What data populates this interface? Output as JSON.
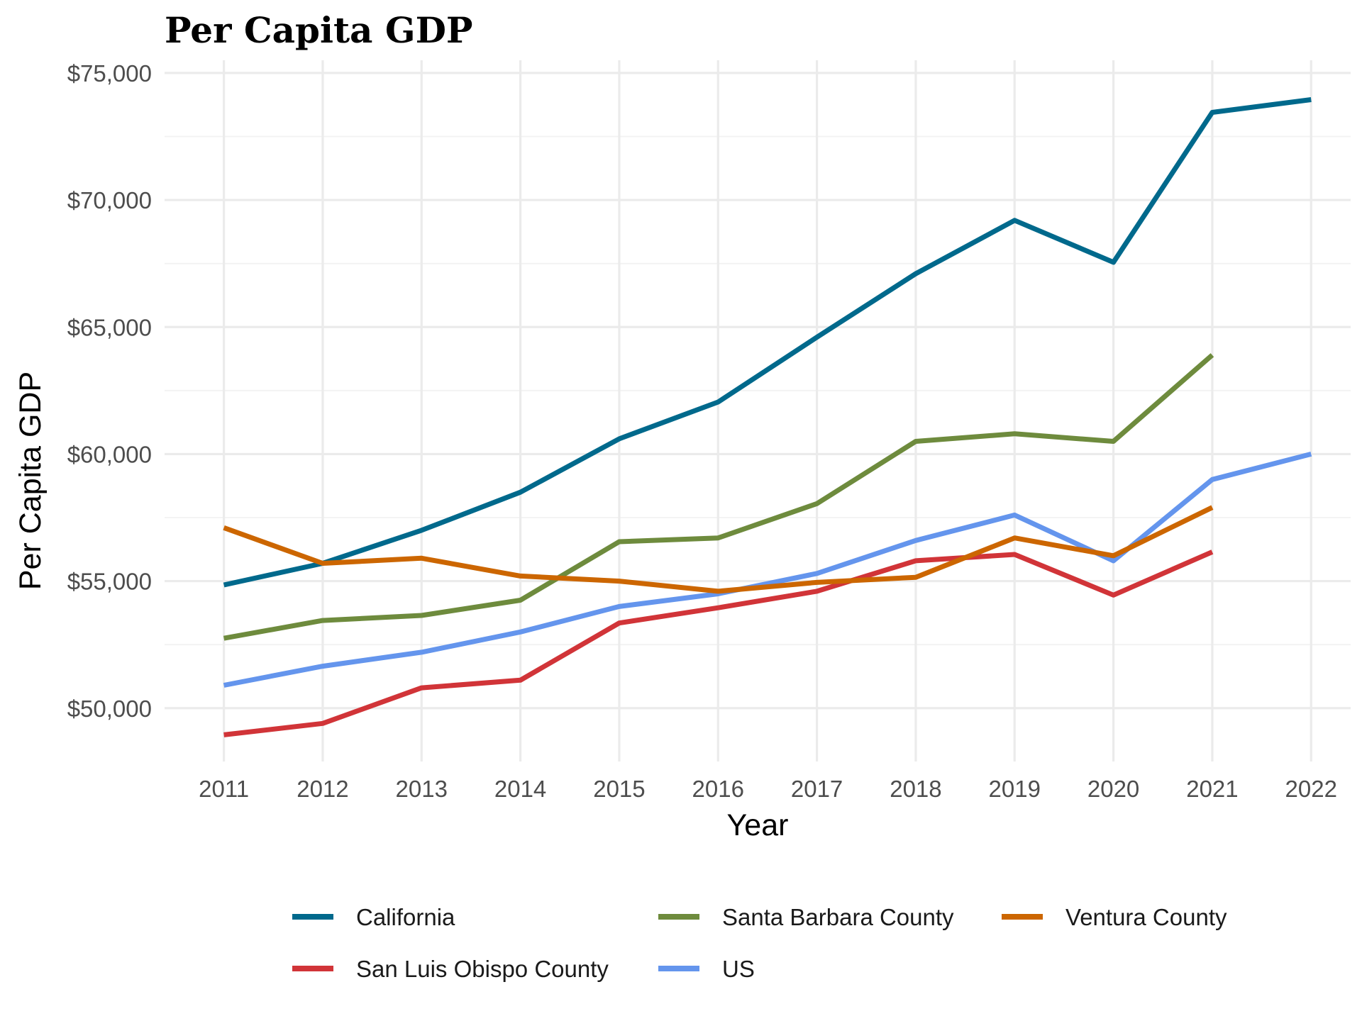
{
  "chart_data": {
    "type": "line",
    "title": "Per Capita GDP",
    "xlabel": "Year",
    "ylabel": "Per Capita GDP",
    "x": [
      2011,
      2012,
      2013,
      2014,
      2015,
      2016,
      2017,
      2018,
      2019,
      2020,
      2021,
      2022
    ],
    "x_tick_labels": [
      "2011",
      "2012",
      "2013",
      "2014",
      "2015",
      "2016",
      "2017",
      "2018",
      "2019",
      "2020",
      "2021",
      "2022"
    ],
    "xlim": [
      2010.4,
      2022.4
    ],
    "ylim": [
      47900,
      75500
    ],
    "y_ticks": [
      50000,
      55000,
      60000,
      65000,
      70000,
      75000
    ],
    "y_tick_labels": [
      "$50,000",
      "$55,000",
      "$60,000",
      "$65,000",
      "$70,000",
      "$75,000"
    ],
    "y_minor_ticks": [
      52500,
      57500,
      62500,
      67500,
      72500
    ],
    "grid": true,
    "legend_position": "bottom",
    "series": [
      {
        "name": "California",
        "color": "#00698c",
        "values": [
          54850,
          55700,
          57000,
          58500,
          60600,
          62050,
          64600,
          67100,
          69200,
          67550,
          73450,
          73950
        ]
      },
      {
        "name": "Santa Barbara County",
        "color": "#6e8b3d",
        "values": [
          52750,
          53450,
          53650,
          54250,
          56550,
          56700,
          58050,
          60500,
          60800,
          60500,
          63900,
          null
        ]
      },
      {
        "name": "Ventura County",
        "color": "#cc6600",
        "values": [
          57100,
          55700,
          55900,
          55200,
          55000,
          54600,
          54950,
          55150,
          56700,
          56000,
          57900,
          null
        ]
      },
      {
        "name": "San Luis Obispo County",
        "color": "#d13438",
        "values": [
          48950,
          49400,
          50800,
          51100,
          53350,
          53950,
          54600,
          55800,
          56050,
          54450,
          56150,
          null
        ]
      },
      {
        "name": "US",
        "color": "#6495ed",
        "values": [
          50900,
          51650,
          52200,
          53000,
          54000,
          54500,
          55300,
          56600,
          57600,
          55800,
          59000,
          60000
        ]
      }
    ]
  }
}
